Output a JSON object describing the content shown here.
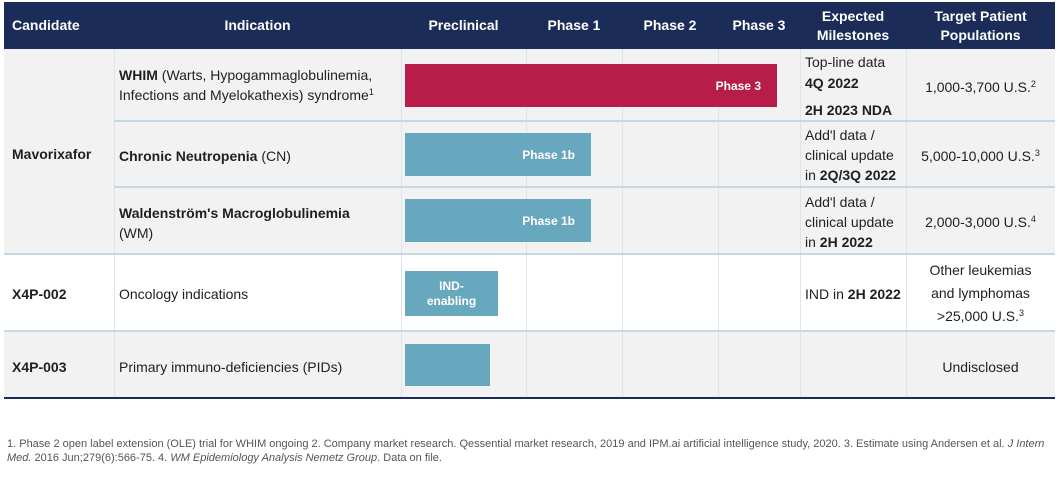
{
  "header": {
    "candidate": "Candidate",
    "indication": "Indication",
    "preclinical": "Preclinical",
    "phase1": "Phase 1",
    "phase2": "Phase 2",
    "phase3": "Phase 3",
    "milestones_line1": "Expected",
    "milestones_line2": "Milestones",
    "populations_line1": "Target Patient",
    "populations_line2": "Populations"
  },
  "colors": {
    "header_bg": "#1b2c59",
    "phase3_bar": "#b81d4a",
    "phase_bar": "#68a8bf",
    "row_band": "#f2f2f2"
  },
  "rows": {
    "mavorixafor": {
      "candidate": "Mavorixafor",
      "whim": {
        "name_bold": "WHIM",
        "name_rest": " (Warts, Hypogammaglobulinemia,",
        "name_line2": "Infections and Myelokathexis) syndrome",
        "sup": "1",
        "bar_label": "Phase 3",
        "progress_stage": "Phase 3",
        "milestone_line1": "Top-line data",
        "milestone_line2": "4Q 2022",
        "milestone_line3": "2H 2023 NDA",
        "population": "1,000-3,700 U.S.",
        "population_sup": "2"
      },
      "cn": {
        "name_bold": "Chronic Neutropenia",
        "name_rest": " (CN)",
        "bar_label": "Phase 1b",
        "progress_stage": "Phase 1b",
        "milestone_line1": "Add'l data /",
        "milestone_line2": "clinical update",
        "milestone_line3_prefix": "in ",
        "milestone_line3_bold": "2Q/3Q 2022",
        "population": "5,000-10,000 U.S.",
        "population_sup": "3"
      },
      "wm": {
        "name_bold": "Waldenström's Macroglobulinemia",
        "name_line2": "(WM)",
        "bar_label": "Phase 1b",
        "progress_stage": "Phase 1b",
        "milestone_line1": "Add'l data /",
        "milestone_line2": "clinical update",
        "milestone_line3_prefix": "in ",
        "milestone_line3_bold": "2H 2022",
        "population": "2,000-3,000 U.S.",
        "population_sup": "4"
      }
    },
    "x4p002": {
      "candidate": "X4P-002",
      "indication": "Oncology indications",
      "bar_label_line1": "IND-",
      "bar_label_line2": "enabling",
      "progress_stage": "IND-enabling",
      "milestone_prefix": "IND in ",
      "milestone_bold": "2H 2022",
      "population_line1": "Other leukemias",
      "population_line2": "and lymphomas",
      "population_line3": ">25,000 U.S.",
      "population_sup": "3"
    },
    "x4p003": {
      "candidate": "X4P-003",
      "indication": "Primary immuno-deficiencies (PIDs)",
      "progress_stage": "Preclinical",
      "population": "Undisclosed"
    }
  },
  "footnote": {
    "part1": "1. Phase 2 open label extension (OLE) trial for WHIM ongoing 2. Company market research. Qessential market research, 2019 and IPM.ai artificial intelligence study, 2020. 3. Estimate using Andersen et al. ",
    "journal": "J Intern Med.",
    "part2": " 2016 Jun;279(6):566-75. 4. ",
    "source": "WM Epidemiology Analysis Nemetz Group",
    "part3": ". Data on file."
  }
}
